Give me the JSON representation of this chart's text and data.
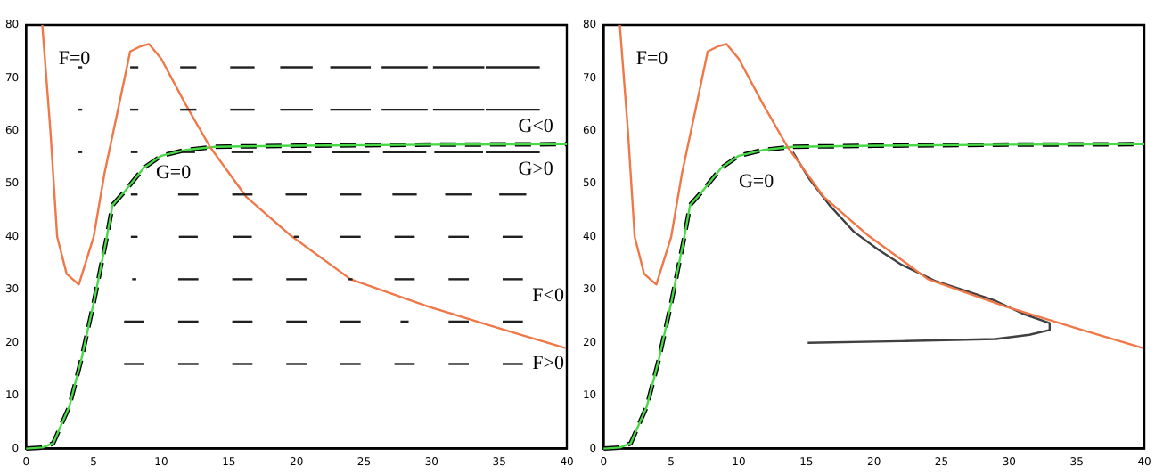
{
  "chart_data": [
    {
      "type": "line",
      "xlim": [
        0,
        40
      ],
      "xticks": [
        0,
        5,
        10,
        15,
        20,
        25,
        30,
        35,
        40
      ],
      "ylim": [
        0,
        80
      ],
      "yticks": [
        0,
        10,
        20,
        30,
        40,
        50,
        60,
        70,
        80
      ],
      "grid": false,
      "legend": false,
      "marker": "none",
      "series": [
        {
          "color": "#f07848",
          "x": [
            1.2,
            1.8,
            2.3,
            3,
            3.9,
            5,
            5.8,
            6.8,
            7.7,
            8.5,
            9.1,
            10,
            11.8,
            13.6,
            16.3,
            19.5,
            24,
            29.8,
            35.3,
            39.9
          ],
          "values": [
            80,
            60,
            40,
            33,
            31,
            40,
            52,
            64,
            75,
            76,
            76.4,
            73.6,
            65,
            57,
            47.5,
            40.4,
            32,
            26.8,
            22.5,
            19
          ]
        },
        {
          "color": "#48d848",
          "x": [
            0,
            1.2,
            2,
            3.2,
            4.1,
            5,
            5.9,
            6.4,
            7.3,
            8.7,
            10,
            11.8,
            14,
            20,
            30,
            40
          ],
          "values": [
            0,
            0.2,
            1,
            8,
            17,
            27.5,
            39,
            46,
            48.6,
            53,
            55.3,
            56.4,
            57,
            57.2,
            57.4,
            57.5
          ]
        },
        {
          "color": "#000000",
          "line_style": "dashed",
          "x": [
            0,
            1.2,
            2,
            3.2,
            4.1,
            5,
            5.9,
            6.4,
            7.3,
            8.7,
            10,
            11.8,
            14,
            20,
            30,
            40
          ],
          "values": [
            0,
            0.2,
            1,
            8,
            17,
            27.5,
            39,
            46,
            48.6,
            53,
            55.3,
            56.4,
            57,
            57.2,
            57.4,
            57.5
          ]
        }
      ],
      "annotations": [
        "F=0",
        "G=0",
        {
          "text": "G<0",
          "x": 39,
          "y": 57.5
        },
        {
          "text": "G>0",
          "x": 39,
          "y": 57.5
        },
        "F<0",
        "F>0"
      ]
    },
    {
      "type": "line",
      "xlim": [
        0,
        40
      ],
      "xticks": [
        0,
        5,
        10,
        15,
        20,
        25,
        30,
        35,
        40
      ],
      "ylim": [
        0,
        80
      ],
      "yticks": [
        0,
        10,
        20,
        30,
        40,
        50,
        60,
        70,
        80
      ],
      "grid": false,
      "legend": false,
      "marker": "none",
      "series": [
        {
          "color": "#f07848",
          "x": [
            1.2,
            1.8,
            2.3,
            3,
            3.9,
            5,
            5.8,
            6.8,
            7.7,
            8.5,
            9.1,
            10,
            11.8,
            13.6,
            16.3,
            19.5,
            24,
            29.8,
            35.3,
            39.9
          ],
          "values": [
            80,
            60,
            40,
            33,
            31,
            40,
            52,
            64,
            75,
            76,
            76.4,
            73.6,
            65,
            57,
            47.5,
            40.4,
            32,
            26.8,
            22.5,
            19
          ]
        },
        {
          "color": "#48d848",
          "x": [
            0,
            1.2,
            2,
            3.2,
            4.1,
            5,
            5.9,
            6.4,
            7.3,
            8.7,
            10,
            11.8,
            14,
            20,
            30,
            40
          ],
          "values": [
            0,
            0.2,
            1,
            8,
            17,
            27.5,
            39,
            46,
            48.6,
            53,
            55.3,
            56.4,
            57,
            57.2,
            57.4,
            57.5
          ]
        },
        {
          "color": "#000000",
          "line_style": "dashed",
          "x": [
            0,
            1.2,
            2,
            3.2,
            4.1,
            5,
            5.9,
            6.4,
            7.3,
            8.7,
            10,
            11.8,
            14,
            20,
            30,
            40
          ],
          "values": [
            0,
            0.2,
            1,
            8,
            17,
            27.5,
            39,
            46,
            48.6,
            53,
            55.3,
            56.4,
            57,
            57.2,
            57.4,
            57.5
          ]
        },
        {
          "color": "#404040",
          "x": [
            15.1,
            22,
            29,
            31.5,
            33,
            33,
            31,
            29,
            26.8,
            24.6,
            22,
            20.3,
            18.5,
            16.7,
            15.2,
            14
          ],
          "values": [
            20,
            20.3,
            20.7,
            21.5,
            22.4,
            23.7,
            25.5,
            27.9,
            29.8,
            31.6,
            34.8,
            37.6,
            41,
            46,
            51,
            56
          ]
        }
      ],
      "annotations": [
        "F=0",
        "G=0"
      ]
    }
  ]
}
